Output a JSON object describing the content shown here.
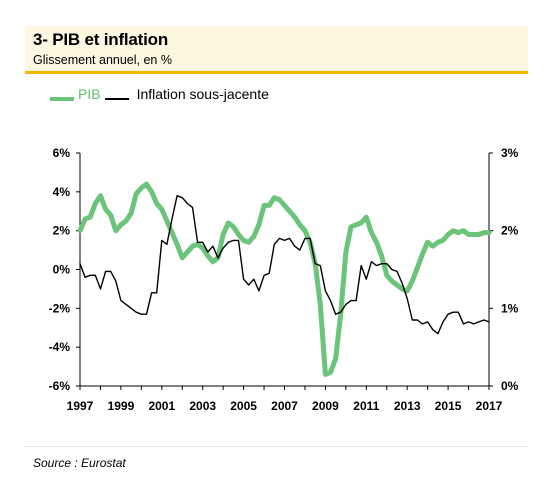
{
  "header": {
    "title": "3- PIB et inflation",
    "subtitle": "Glissement annuel, en %"
  },
  "legend": {
    "pib_label": "PIB",
    "inflation_label": "Inflation sous-jacente"
  },
  "source": "Source : Eurostat",
  "colors": {
    "pib": "#6cc37a",
    "inflation": "#000000",
    "accent": "#f5b800"
  },
  "chart_data": {
    "type": "line",
    "x_tick_labels": [
      "1997",
      "1999",
      "2001",
      "2003",
      "2005",
      "2007",
      "2009",
      "2011",
      "2013",
      "2015",
      "2017"
    ],
    "xlim": [
      1997,
      2017
    ],
    "y_left": {
      "ticks": [
        6,
        4,
        2,
        0,
        -2,
        -4,
        -6
      ],
      "tick_labels": [
        "6%",
        "4%",
        "2%",
        "0%",
        "-2%",
        "-4%",
        "-6%"
      ],
      "ylim": [
        -6,
        6
      ]
    },
    "y_right": {
      "ticks": [
        3,
        2,
        1,
        0
      ],
      "tick_labels": [
        "3%",
        "2%",
        "1%",
        "0%"
      ],
      "ylim": [
        0,
        3
      ]
    },
    "grid": false,
    "series": [
      {
        "name": "PIB",
        "axis": "left",
        "points": [
          [
            1997.0,
            2.0
          ],
          [
            1997.25,
            2.6
          ],
          [
            1997.5,
            2.7
          ],
          [
            1997.75,
            3.4
          ],
          [
            1998.0,
            3.8
          ],
          [
            1998.25,
            3.1
          ],
          [
            1998.5,
            2.8
          ],
          [
            1998.75,
            2.0
          ],
          [
            1999.0,
            2.3
          ],
          [
            1999.25,
            2.5
          ],
          [
            1999.5,
            2.9
          ],
          [
            1999.75,
            3.9
          ],
          [
            2000.0,
            4.2
          ],
          [
            2000.25,
            4.4
          ],
          [
            2000.5,
            4.0
          ],
          [
            2000.75,
            3.4
          ],
          [
            2001.0,
            3.1
          ],
          [
            2001.25,
            2.5
          ],
          [
            2001.5,
            1.9
          ],
          [
            2001.75,
            1.3
          ],
          [
            2002.0,
            0.6
          ],
          [
            2002.25,
            0.9
          ],
          [
            2002.5,
            1.2
          ],
          [
            2002.75,
            1.3
          ],
          [
            2003.0,
            1.1
          ],
          [
            2003.25,
            0.7
          ],
          [
            2003.5,
            0.4
          ],
          [
            2003.75,
            0.6
          ],
          [
            2004.0,
            1.8
          ],
          [
            2004.25,
            2.4
          ],
          [
            2004.5,
            2.2
          ],
          [
            2004.75,
            1.8
          ],
          [
            2005.0,
            1.5
          ],
          [
            2005.25,
            1.4
          ],
          [
            2005.5,
            1.7
          ],
          [
            2005.75,
            2.3
          ],
          [
            2006.0,
            3.3
          ],
          [
            2006.25,
            3.3
          ],
          [
            2006.5,
            3.7
          ],
          [
            2006.75,
            3.6
          ],
          [
            2007.0,
            3.3
          ],
          [
            2007.25,
            3.0
          ],
          [
            2007.5,
            2.7
          ],
          [
            2007.75,
            2.3
          ],
          [
            2008.0,
            2.0
          ],
          [
            2008.25,
            1.4
          ],
          [
            2008.5,
            0.3
          ],
          [
            2008.75,
            -1.8
          ],
          [
            2009.0,
            -5.4
          ],
          [
            2009.25,
            -5.3
          ],
          [
            2009.5,
            -4.6
          ],
          [
            2009.75,
            -2.3
          ],
          [
            2010.0,
            0.9
          ],
          [
            2010.25,
            2.2
          ],
          [
            2010.5,
            2.3
          ],
          [
            2010.75,
            2.4
          ],
          [
            2011.0,
            2.7
          ],
          [
            2011.25,
            1.9
          ],
          [
            2011.5,
            1.4
          ],
          [
            2011.75,
            0.7
          ],
          [
            2012.0,
            -0.3
          ],
          [
            2012.25,
            -0.6
          ],
          [
            2012.5,
            -0.8
          ],
          [
            2012.75,
            -1.0
          ],
          [
            2013.0,
            -1.1
          ],
          [
            2013.25,
            -0.6
          ],
          [
            2013.5,
            0.1
          ],
          [
            2013.75,
            0.8
          ],
          [
            2014.0,
            1.4
          ],
          [
            2014.25,
            1.2
          ],
          [
            2014.5,
            1.4
          ],
          [
            2014.75,
            1.5
          ],
          [
            2015.0,
            1.8
          ],
          [
            2015.25,
            2.0
          ],
          [
            2015.5,
            1.9
          ],
          [
            2015.75,
            2.0
          ],
          [
            2016.0,
            1.8
          ],
          [
            2016.25,
            1.8
          ],
          [
            2016.5,
            1.8
          ],
          [
            2016.75,
            1.9
          ],
          [
            2017.0,
            1.9
          ]
        ]
      },
      {
        "name": "Inflation sous-jacente",
        "axis": "left",
        "points": [
          [
            1997.0,
            0.3
          ],
          [
            1997.25,
            -0.4
          ],
          [
            1997.5,
            -0.3
          ],
          [
            1997.75,
            -0.3
          ],
          [
            1998.0,
            -1.0
          ],
          [
            1998.25,
            -0.1
          ],
          [
            1998.5,
            -0.1
          ],
          [
            1998.75,
            -0.6
          ],
          [
            1999.0,
            -1.6
          ],
          [
            1999.25,
            -1.8
          ],
          [
            1999.5,
            -2.0
          ],
          [
            1999.75,
            -2.2
          ],
          [
            2000.0,
            -2.3
          ],
          [
            2000.25,
            -2.3
          ],
          [
            2000.5,
            -1.2
          ],
          [
            2000.75,
            -1.2
          ],
          [
            2001.0,
            1.5
          ],
          [
            2001.25,
            1.3
          ],
          [
            2001.5,
            2.6
          ],
          [
            2001.75,
            3.8
          ],
          [
            2002.0,
            3.7
          ],
          [
            2002.25,
            3.4
          ],
          [
            2002.5,
            3.2
          ],
          [
            2002.75,
            1.4
          ],
          [
            2003.0,
            1.4
          ],
          [
            2003.25,
            0.9
          ],
          [
            2003.5,
            1.2
          ],
          [
            2003.75,
            0.6
          ],
          [
            2004.0,
            1.1
          ],
          [
            2004.25,
            1.4
          ],
          [
            2004.5,
            1.5
          ],
          [
            2004.75,
            1.5
          ],
          [
            2005.0,
            -0.5
          ],
          [
            2005.25,
            -0.8
          ],
          [
            2005.5,
            -0.5
          ],
          [
            2005.75,
            -1.1
          ],
          [
            2006.0,
            -0.3
          ],
          [
            2006.25,
            -0.2
          ],
          [
            2006.5,
            1.3
          ],
          [
            2006.75,
            1.6
          ],
          [
            2007.0,
            1.5
          ],
          [
            2007.25,
            1.6
          ],
          [
            2007.5,
            1.2
          ],
          [
            2007.75,
            1.0
          ],
          [
            2008.0,
            1.6
          ],
          [
            2008.25,
            1.6
          ],
          [
            2008.5,
            0.3
          ],
          [
            2008.75,
            0.2
          ],
          [
            2009.0,
            -1.1
          ],
          [
            2009.25,
            -1.6
          ],
          [
            2009.5,
            -2.3
          ],
          [
            2009.75,
            -2.2
          ],
          [
            2010.0,
            -1.8
          ],
          [
            2010.25,
            -1.6
          ],
          [
            2010.5,
            -1.6
          ],
          [
            2010.75,
            0.2
          ],
          [
            2011.0,
            -0.5
          ],
          [
            2011.25,
            0.4
          ],
          [
            2011.5,
            0.2
          ],
          [
            2011.75,
            0.3
          ],
          [
            2012.0,
            0.3
          ],
          [
            2012.25,
            0.0
          ],
          [
            2012.5,
            -0.1
          ],
          [
            2012.75,
            -0.7
          ],
          [
            2013.0,
            -1.5
          ],
          [
            2013.25,
            -2.6
          ],
          [
            2013.5,
            -2.6
          ],
          [
            2013.75,
            -2.8
          ],
          [
            2014.0,
            -2.7
          ],
          [
            2014.25,
            -3.1
          ],
          [
            2014.5,
            -3.3
          ],
          [
            2014.75,
            -2.7
          ],
          [
            2015.0,
            -2.3
          ],
          [
            2015.25,
            -2.2
          ],
          [
            2015.5,
            -2.2
          ],
          [
            2015.75,
            -2.8
          ],
          [
            2016.0,
            -2.7
          ],
          [
            2016.25,
            -2.8
          ],
          [
            2016.5,
            -2.7
          ],
          [
            2016.75,
            -2.6
          ],
          [
            2017.0,
            -2.7
          ]
        ]
      }
    ]
  }
}
